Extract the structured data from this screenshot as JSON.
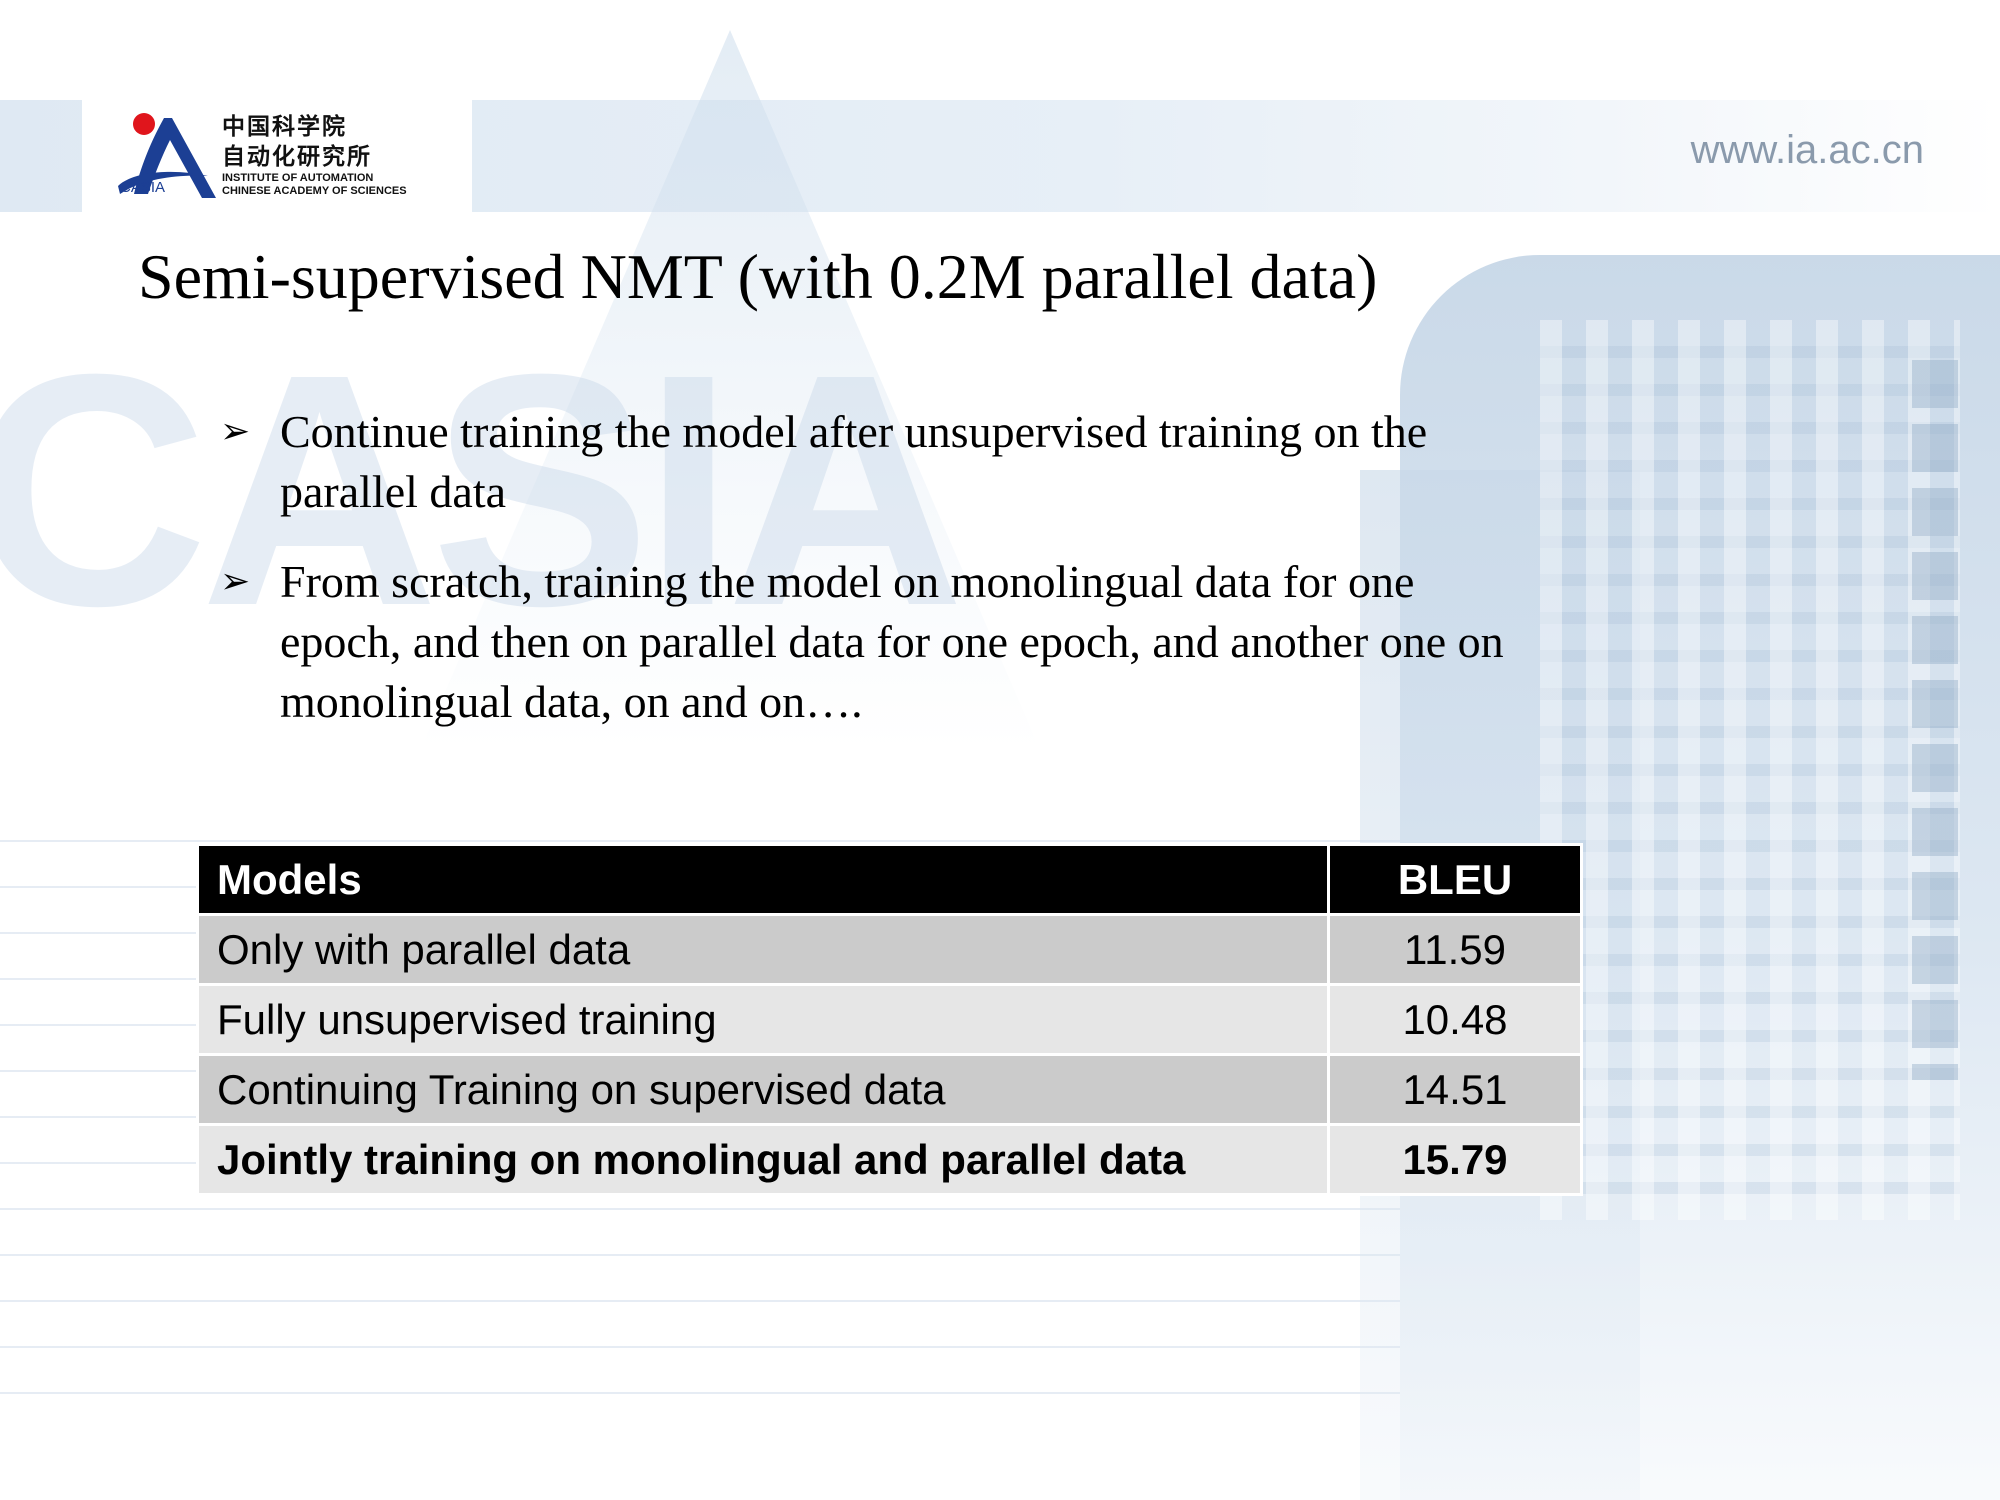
{
  "header": {
    "logo": {
      "cn_line1": "中国科学院",
      "cn_line2": "自动化研究所",
      "en_line1": "INSTITUTE OF AUTOMATION",
      "en_line2": "CHINESE ACADEMY OF SCIENCES",
      "mark_text": "CASIA"
    },
    "website": "www.ia.ac.cn"
  },
  "slide": {
    "title": "Semi-supervised NMT (with 0.2M parallel data)",
    "bullet_icon": "arrow-bullet-icon",
    "bullets": [
      {
        "line1": "Continue training the model after unsupervised training on the",
        "line2": "parallel data"
      },
      {
        "line1": "From scratch, training the model on monolingual data for one",
        "line2": "epoch, and then on parallel data for one epoch, and another one on",
        "line3": "monolingual data, on and on…."
      }
    ]
  },
  "table": {
    "headers": [
      "Models",
      "BLEU"
    ],
    "rows": [
      {
        "model": "Only with parallel data",
        "bleu": "11.59"
      },
      {
        "model": "Fully unsupervised training",
        "bleu": "10.48"
      },
      {
        "model": "Continuing Training on supervised data",
        "bleu": "14.51"
      },
      {
        "model": "Jointly training on monolingual and parallel data",
        "bleu": "15.79"
      }
    ],
    "header_bg": "#000000",
    "row_bg_odd": "#cbcbcb",
    "row_bg_even": "#e6e6e6"
  },
  "watermark": "CASIA"
}
